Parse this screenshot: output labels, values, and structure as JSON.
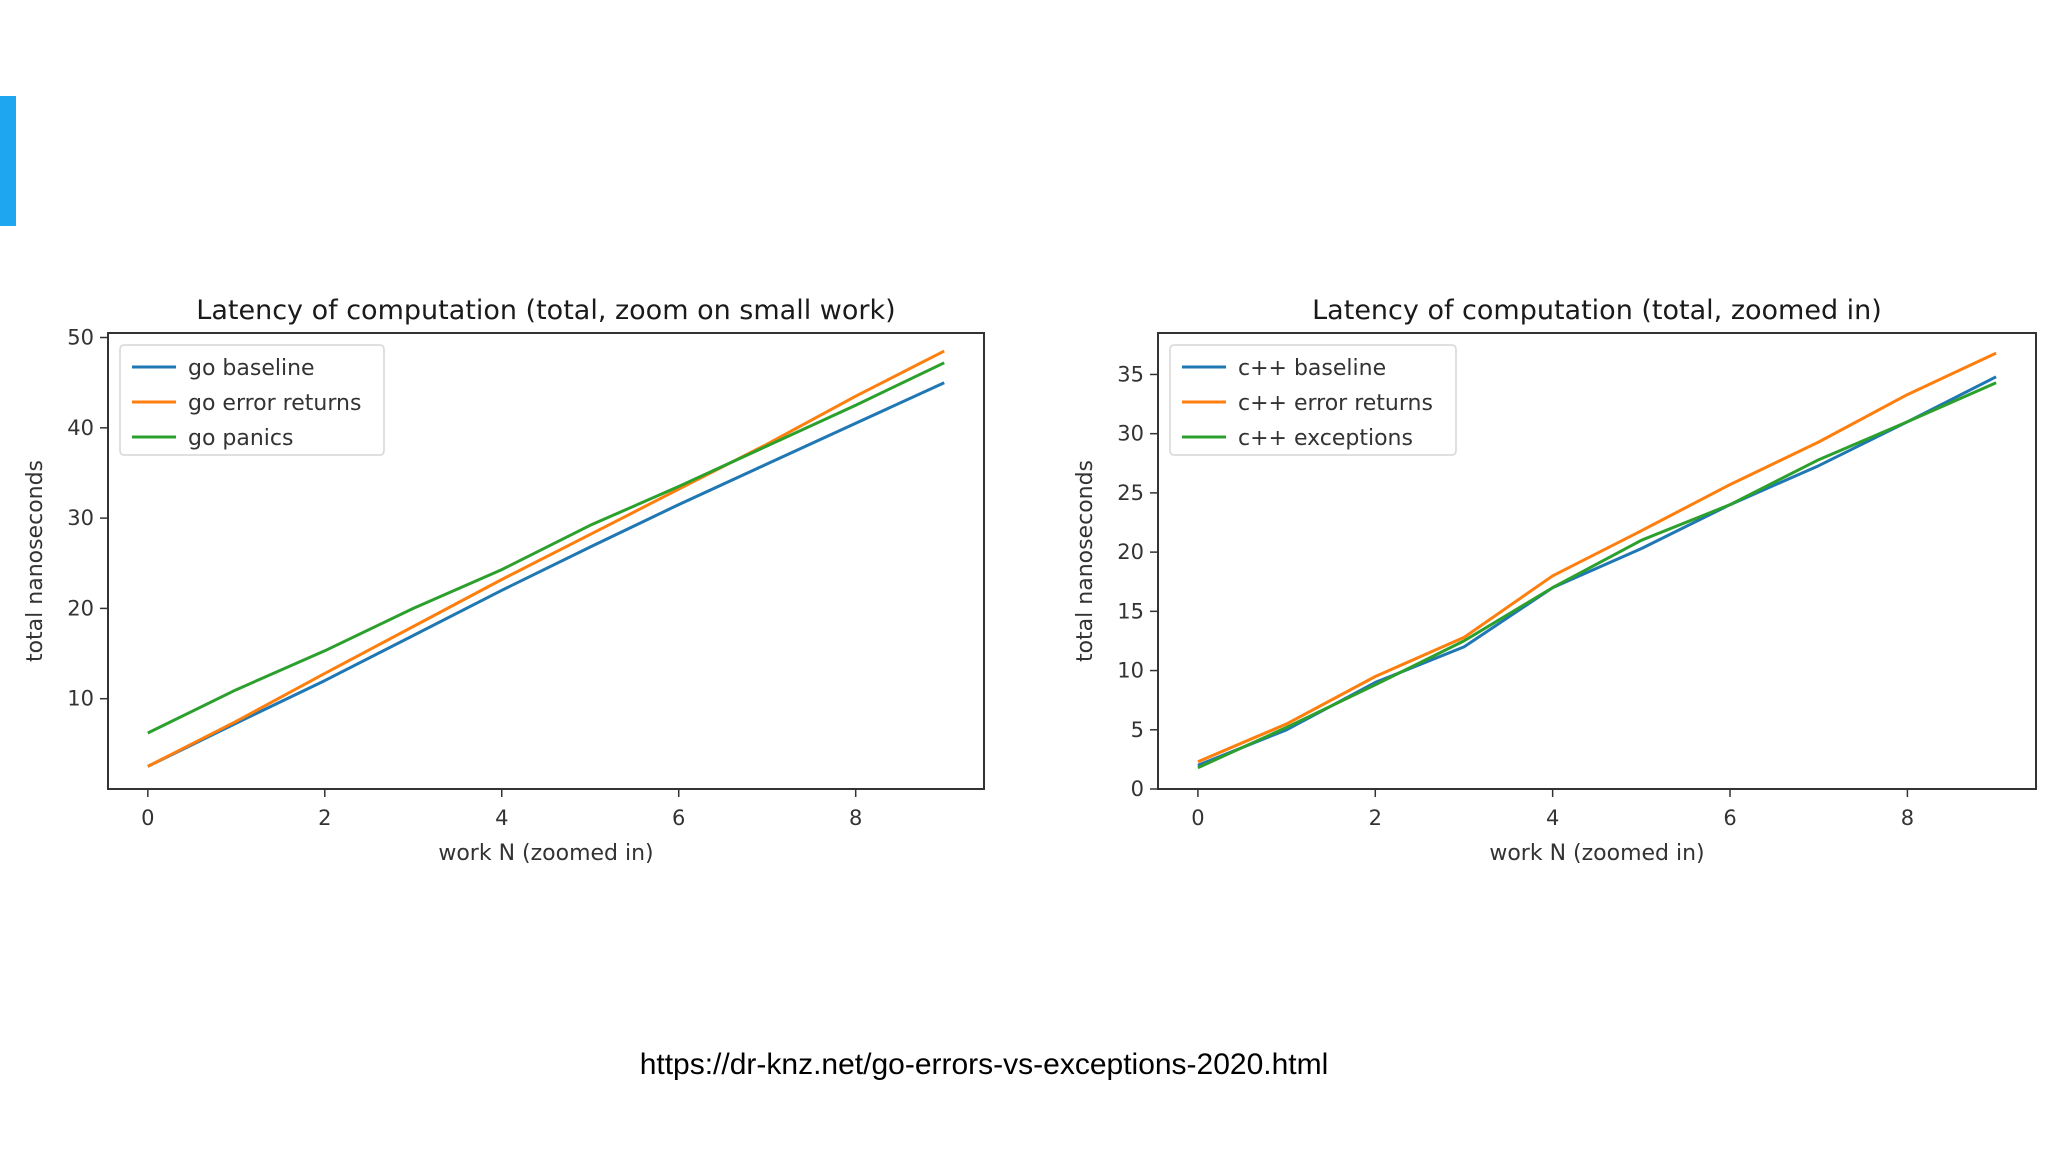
{
  "slide": {
    "accent_color": "#1ea6f0",
    "source_url": "https://dr-knz.net/go-errors-vs-exceptions-2020.html"
  },
  "chart_data": [
    {
      "type": "line",
      "title": "Latency of computation (total, zoom on small work)",
      "xlabel": "work N (zoomed in)",
      "ylabel": "total nanoseconds",
      "xlim": [
        -0.45,
        9.45
      ],
      "ylim": [
        0,
        50.5
      ],
      "xticks": [
        0,
        2,
        4,
        6,
        8
      ],
      "yticks": [
        10,
        20,
        30,
        40,
        50
      ],
      "legend_position": "top-left",
      "x": [
        0,
        1,
        2,
        3,
        4,
        5,
        6,
        7,
        8,
        9
      ],
      "series": [
        {
          "name": "go baseline",
          "color": "#1f77b4",
          "values": [
            2.5,
            7.3,
            12.0,
            17.0,
            22.0,
            26.8,
            31.5,
            36.0,
            40.5,
            45.0
          ]
        },
        {
          "name": "go error returns",
          "color": "#ff7f0e",
          "values": [
            2.5,
            7.5,
            12.8,
            18.0,
            23.2,
            28.2,
            33.2,
            38.2,
            43.5,
            48.5
          ]
        },
        {
          "name": "go panics",
          "color": "#2ca02c",
          "values": [
            6.2,
            11.0,
            15.3,
            20.0,
            24.3,
            29.2,
            33.5,
            38.0,
            42.5,
            47.2
          ]
        }
      ]
    },
    {
      "type": "line",
      "title": "Latency of computation (total, zoomed in)",
      "xlabel": "work N (zoomed in)",
      "ylabel": "total nanoseconds",
      "xlim": [
        -0.45,
        9.45
      ],
      "ylim": [
        0,
        38.5
      ],
      "xticks": [
        0,
        2,
        4,
        6,
        8
      ],
      "yticks": [
        0,
        5,
        10,
        15,
        20,
        25,
        30,
        35
      ],
      "legend_position": "top-left",
      "x": [
        0,
        1,
        2,
        3,
        4,
        5,
        6,
        7,
        8,
        9
      ],
      "series": [
        {
          "name": "c++ baseline",
          "color": "#1f77b4",
          "values": [
            2.0,
            5.0,
            9.0,
            12.0,
            17.0,
            20.3,
            24.0,
            27.3,
            31.0,
            34.8
          ]
        },
        {
          "name": "c++ error returns",
          "color": "#ff7f0e",
          "values": [
            2.3,
            5.5,
            9.5,
            12.8,
            18.0,
            21.8,
            25.7,
            29.3,
            33.3,
            36.8
          ]
        },
        {
          "name": "c++ exceptions",
          "color": "#2ca02c",
          "values": [
            1.8,
            5.2,
            8.8,
            12.5,
            17.0,
            21.0,
            24.0,
            27.8,
            31.0,
            34.3
          ]
        }
      ]
    }
  ]
}
